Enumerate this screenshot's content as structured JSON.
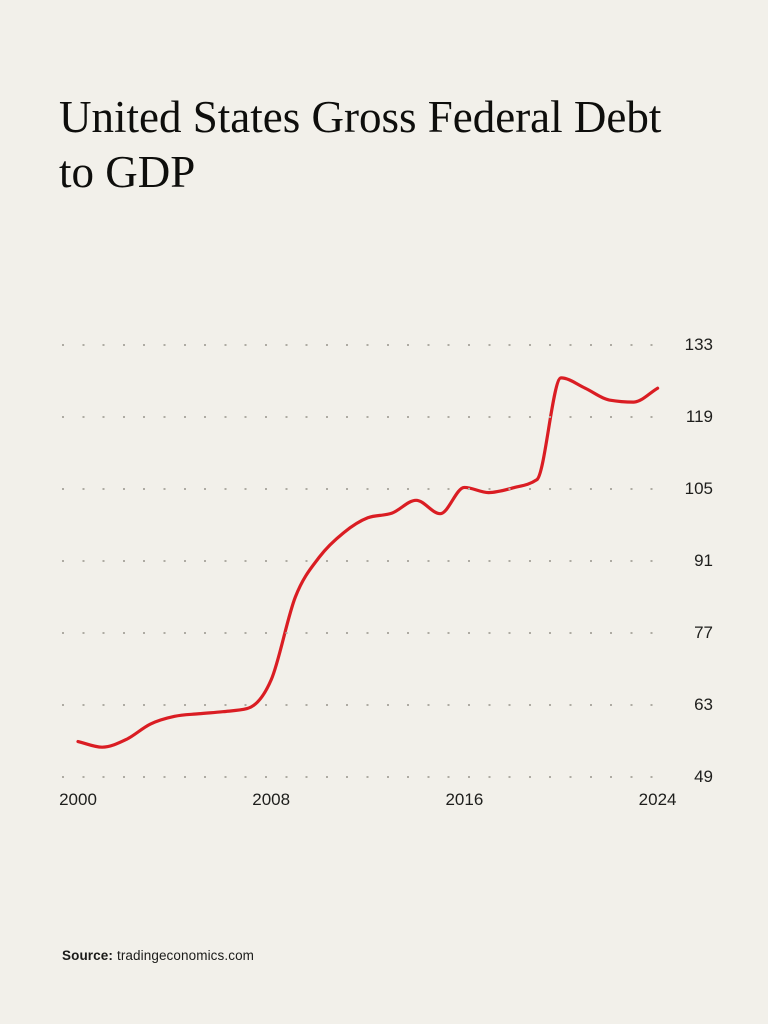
{
  "title": "United States Gross Federal Debt to GDP",
  "source": {
    "label": "Source:",
    "value": "tradingeconomics.com"
  },
  "colors": {
    "background": "#f2f0ea",
    "line": "#da1d23",
    "grid_dots": "#aeaba3",
    "text": "#1e1e1c"
  },
  "chart_data": {
    "type": "line",
    "title": "United States Gross Federal Debt to GDP",
    "xlabel": "",
    "ylabel": "",
    "x": [
      2000,
      2001,
      2002,
      2003,
      2004,
      2005,
      2006,
      2007,
      2008,
      2009,
      2010,
      2011,
      2012,
      2013,
      2014,
      2015,
      2016,
      2017,
      2018,
      2019,
      2020,
      2021,
      2022,
      2023,
      2024
    ],
    "values": [
      55.9,
      54.8,
      56.3,
      59.3,
      60.8,
      61.3,
      61.7,
      62.3,
      67.9,
      84.0,
      91.8,
      96.5,
      99.4,
      100.3,
      102.8,
      100.2,
      105.3,
      104.3,
      105.2,
      106.8,
      126.6,
      124.6,
      122.3,
      121.9,
      124.6
    ],
    "y_ticks": [
      133,
      119,
      105,
      91,
      77,
      63,
      49
    ],
    "x_ticks": [
      2000,
      2008,
      2016,
      2024
    ],
    "ylim": [
      49,
      133
    ],
    "xlim": [
      1999.2,
      2024.6
    ],
    "grid": "dotted-horizontal",
    "legend_position": "none",
    "line_smoothing": "monotone"
  }
}
